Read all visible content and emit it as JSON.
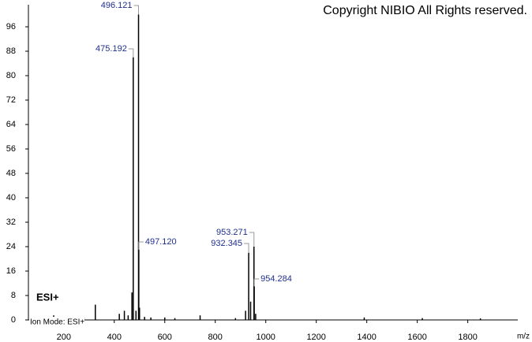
{
  "chart_data": {
    "type": "spectrum",
    "title": "Copyright NIBIO All Rights reserved.",
    "annotation": "ESI+",
    "mode_label": "Ion Mode: ESI+",
    "x_label": "m/z",
    "color": "#000000",
    "label_color": "#1f2f8f",
    "xlim": [
      60,
      1995
    ],
    "ylim": [
      0,
      100
    ],
    "xticks": [
      200,
      400,
      600,
      800,
      1000,
      1200,
      1400,
      1600,
      1800
    ],
    "yticks": [
      0,
      8,
      16,
      24,
      32,
      40,
      48,
      56,
      64,
      72,
      80,
      88,
      96
    ],
    "x": [
      112,
      140,
      160,
      190,
      230,
      280,
      325,
      420,
      440,
      455,
      470,
      475.192,
      486,
      496.121,
      497.12,
      500,
      520,
      545,
      600,
      640,
      740,
      880,
      920,
      932.345,
      940,
      953.271,
      954.284,
      960,
      1390,
      1620,
      1850
    ],
    "values": [
      0.5,
      1,
      1.5,
      0.8,
      0.8,
      0.8,
      5,
      2,
      3,
      1.5,
      9,
      86,
      3,
      100,
      23,
      4,
      1,
      0.8,
      0.8,
      0.6,
      1.5,
      0.6,
      3,
      22,
      6,
      24,
      11,
      2,
      0.8,
      0.6,
      0.5
    ],
    "labels": [
      null,
      null,
      null,
      null,
      null,
      null,
      null,
      null,
      null,
      null,
      null,
      "475.192",
      null,
      "496.121",
      "497.120",
      null,
      null,
      null,
      null,
      null,
      null,
      null,
      null,
      "932.345",
      null,
      "953.271",
      "954.284",
      null,
      null,
      null,
      null
    ]
  }
}
